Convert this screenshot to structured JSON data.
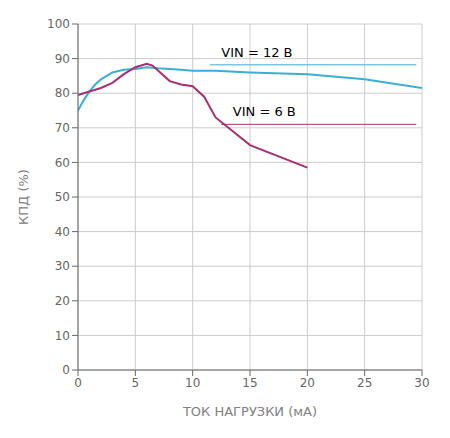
{
  "chart_data": {
    "type": "line",
    "xlabel": "ТОК НАГРУЗКИ (мА)",
    "ylabel": "КПД (%)",
    "xlim": [
      0,
      30
    ],
    "ylim": [
      0,
      100
    ],
    "xticks": [
      0,
      5,
      10,
      15,
      20,
      25,
      30
    ],
    "yticks": [
      0,
      10,
      20,
      30,
      40,
      50,
      60,
      70,
      80,
      90,
      100
    ],
    "grid": true,
    "series": [
      {
        "color": "#3aaed8",
        "x": [
          0.0,
          0.5,
          1.0,
          1.5,
          2.0,
          3.0,
          4.0,
          5.0,
          6.0,
          7.0,
          8.0,
          9.0,
          10.0,
          12.0,
          15.0,
          20.0,
          25.0,
          30.0
        ],
        "values": [
          75.0,
          78.0,
          80.5,
          82.5,
          84.0,
          86.0,
          86.8,
          87.0,
          87.5,
          87.2,
          87.0,
          86.8,
          86.5,
          86.5,
          86.0,
          85.5,
          84.0,
          81.5
        ]
      },
      {
        "color": "#a83070",
        "x": [
          0.0,
          0.5,
          1.0,
          1.5,
          2.0,
          3.0,
          4.0,
          5.0,
          6.0,
          6.5,
          7.0,
          8.0,
          9.0,
          10.0,
          11.0,
          12.0,
          15.0,
          20.0
        ],
        "values": [
          79.5,
          80.0,
          80.5,
          81.0,
          81.5,
          83.0,
          85.5,
          87.5,
          88.5,
          88.0,
          86.5,
          83.5,
          82.5,
          82.0,
          79.0,
          73.0,
          65.0,
          58.5
        ]
      }
    ],
    "annotations": [
      {
        "text": "VIN = 12 В",
        "x": 12.5,
        "y": 89.5,
        "line_x": [
          11.5,
          29.5
        ],
        "line_y": 88.2,
        "color": "#3aaed8"
      },
      {
        "text": "VIN = 6 В",
        "x": 13.5,
        "y": 72.5,
        "line_x": [
          12.5,
          29.5
        ],
        "line_y": 71.0,
        "color": "#a83070"
      }
    ]
  }
}
